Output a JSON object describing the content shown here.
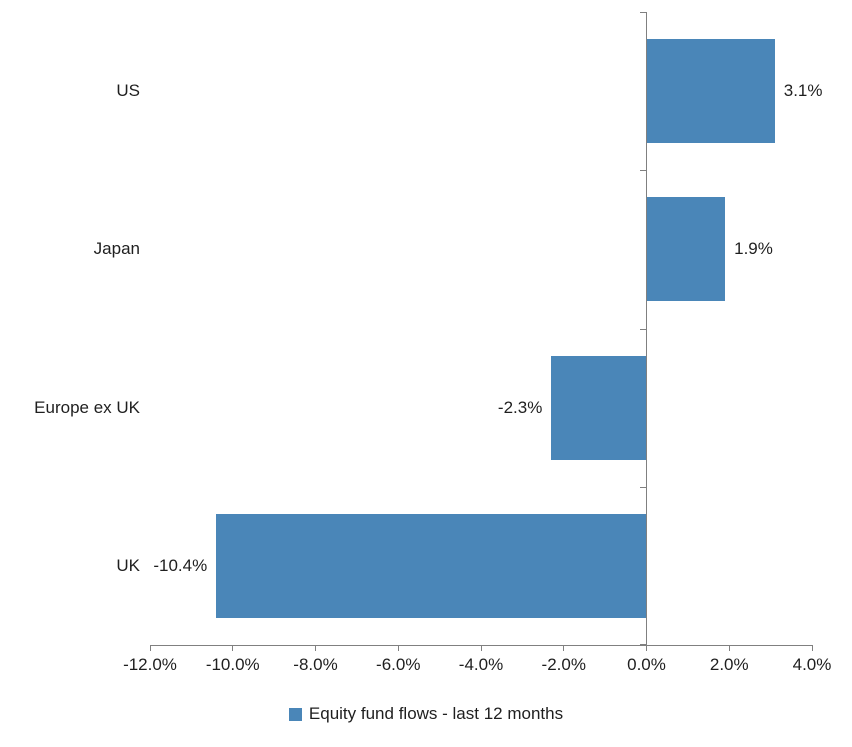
{
  "chart_data": {
    "type": "bar",
    "orientation": "horizontal",
    "title": "",
    "categories": [
      "US",
      "Japan",
      "Europe ex UK",
      "UK"
    ],
    "series": [
      {
        "name": "Equity fund flows - last 12 months",
        "values": [
          3.1,
          1.9,
          -2.3,
          -10.4
        ],
        "data_labels": [
          "3.1%",
          "1.9%",
          "-2.3%",
          "-10.4%"
        ],
        "color": "#4a86b8"
      }
    ],
    "xlim": [
      -12,
      4
    ],
    "x_tick_values": [
      -12,
      -10,
      -8,
      -6,
      -4,
      -2,
      0,
      2,
      4
    ],
    "x_tick_labels": [
      "-12.0%",
      "-10.0%",
      "-8.0%",
      "-6.0%",
      "-4.0%",
      "-2.0%",
      "0.0%",
      "2.0%",
      "4.0%"
    ],
    "grid": false,
    "legend_position": "bottom",
    "legend": {
      "label": "Equity fund flows - last 12 months",
      "swatch_color": "#4a86b8"
    },
    "axis_color": "#808080"
  }
}
